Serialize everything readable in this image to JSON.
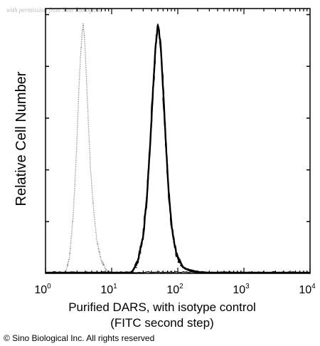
{
  "watermark": "with permission from Sino Biological",
  "copyright": "© Sino Biological Inc. All rights reserved",
  "chart_data": {
    "type": "line",
    "xscale": "log",
    "xlim": [
      1,
      10000
    ],
    "ylim": [
      0,
      1
    ],
    "grid": false,
    "legend": "none",
    "xlabel": "Purified DARS, with isotype control",
    "xlabel2": "(FITC second step)",
    "ylabel": "Relative Cell Number",
    "xticks": [
      {
        "base": "10",
        "exp": "0"
      },
      {
        "base": "10",
        "exp": "1"
      },
      {
        "base": "10",
        "exp": "2"
      },
      {
        "base": "10",
        "exp": "3"
      },
      {
        "base": "10",
        "exp": "4"
      }
    ],
    "series": [
      {
        "style": "dotted",
        "color": "#888888",
        "peak_x": 3.7,
        "x": [
          2.0,
          2.3,
          2.6,
          2.9,
          3.1,
          3.3,
          3.5,
          3.7,
          3.9,
          4.1,
          4.4,
          4.8,
          5.3,
          6.0,
          7.0,
          8.0,
          9.0,
          10.5
        ],
        "y": [
          0.0,
          0.06,
          0.22,
          0.45,
          0.65,
          0.82,
          0.93,
          1.0,
          0.94,
          0.82,
          0.62,
          0.42,
          0.26,
          0.13,
          0.05,
          0.02,
          0.005,
          0.0
        ]
      },
      {
        "style": "solid",
        "color": "#000000",
        "peak_x": 50,
        "x": [
          20,
          25,
          30,
          34,
          38,
          42,
          46,
          50,
          55,
          60,
          66,
          72,
          80,
          90,
          100,
          120,
          150,
          200,
          280,
          400
        ],
        "y": [
          0.0,
          0.05,
          0.15,
          0.3,
          0.5,
          0.72,
          0.9,
          1.0,
          0.92,
          0.74,
          0.52,
          0.35,
          0.2,
          0.11,
          0.06,
          0.025,
          0.012,
          0.006,
          0.002,
          0.0
        ]
      }
    ]
  }
}
